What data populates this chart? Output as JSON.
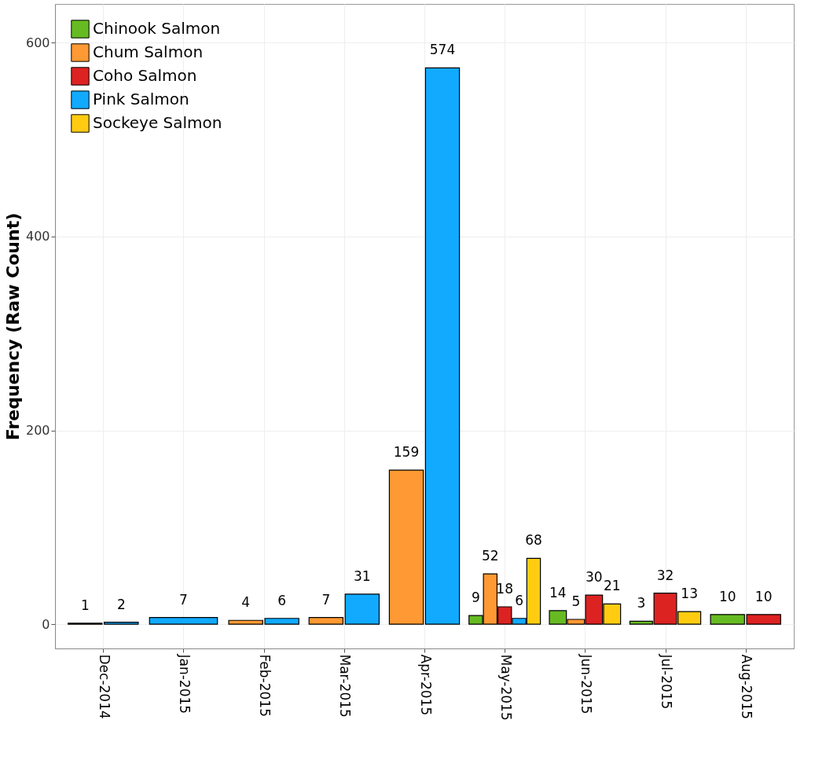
{
  "chart_data": {
    "type": "bar",
    "ylabel": "Frequency (Raw Count)",
    "categories": [
      "Dec-2014",
      "Jan-2015",
      "Feb-2015",
      "Mar-2015",
      "Apr-2015",
      "May-2015",
      "Jun-2015",
      "Jul-2015",
      "Aug-2015"
    ],
    "series": [
      {
        "name": "Chinook Salmon",
        "color": "#66bb22",
        "values": [
          null,
          null,
          null,
          null,
          null,
          9,
          14,
          3,
          10
        ]
      },
      {
        "name": "Chum Salmon",
        "color": "#ff9933",
        "values": [
          1,
          null,
          4,
          7,
          159,
          52,
          5,
          null,
          null
        ]
      },
      {
        "name": "Coho Salmon",
        "color": "#dd2222",
        "values": [
          null,
          null,
          null,
          null,
          null,
          18,
          30,
          32,
          10
        ]
      },
      {
        "name": "Pink Salmon",
        "color": "#11aaff",
        "values": [
          2,
          7,
          6,
          31,
          574,
          6,
          null,
          null,
          null
        ]
      },
      {
        "name": "Sockeye Salmon",
        "color": "#ffcc11",
        "values": [
          null,
          null,
          null,
          null,
          null,
          68,
          21,
          13,
          null
        ]
      }
    ],
    "ylim": [
      -25,
      640
    ],
    "yticks": [
      0,
      200,
      400,
      600
    ],
    "grid": true,
    "legend": "top left",
    "data_labels": true
  }
}
